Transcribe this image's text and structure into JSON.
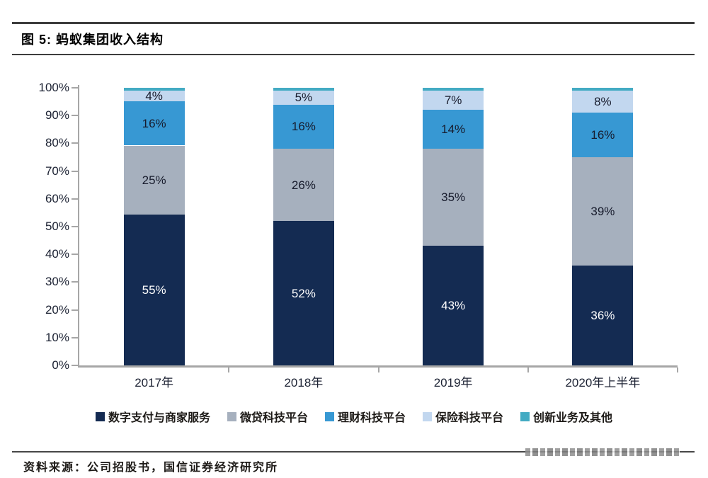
{
  "figure": {
    "title": "图 5: 蚂蚁集团收入结构",
    "source": "资料来源：公司招股书，国信证券经济研究所"
  },
  "chart_data": {
    "type": "bar",
    "stacked": true,
    "title": "蚂蚁集团收入结构",
    "categories": [
      "2017年",
      "2018年",
      "2019年",
      "2020年上半年"
    ],
    "series": [
      {
        "name": "数字支付与商家服务",
        "color": "#142b52",
        "values": [
          55,
          52,
          43,
          36
        ],
        "show_labels": true,
        "label_color": "#ffffff"
      },
      {
        "name": "微贷科技平台",
        "color": "#a6b0be",
        "values": [
          25,
          26,
          35,
          39
        ],
        "show_labels": true,
        "label_color": "#171b2c"
      },
      {
        "name": "理财科技平台",
        "color": "#3798d3",
        "values": [
          16,
          16,
          14,
          16
        ],
        "show_labels": true,
        "label_color": "#171b2c"
      },
      {
        "name": "保险科技平台",
        "color": "#c2d7ef",
        "values": [
          4,
          5,
          7,
          8
        ],
        "show_labels": true,
        "label_color": "#171b2c"
      },
      {
        "name": "创新业务及其他",
        "color": "#43abc3",
        "values": [
          1,
          1,
          1,
          1
        ],
        "show_labels": false,
        "label_color": "#171b2c"
      }
    ],
    "y_ticks": [
      "0%",
      "10%",
      "20%",
      "30%",
      "40%",
      "50%",
      "60%",
      "70%",
      "80%",
      "90%",
      "100%"
    ],
    "ylim": [
      0,
      100
    ],
    "grid": false,
    "legend_position": "bottom"
  }
}
